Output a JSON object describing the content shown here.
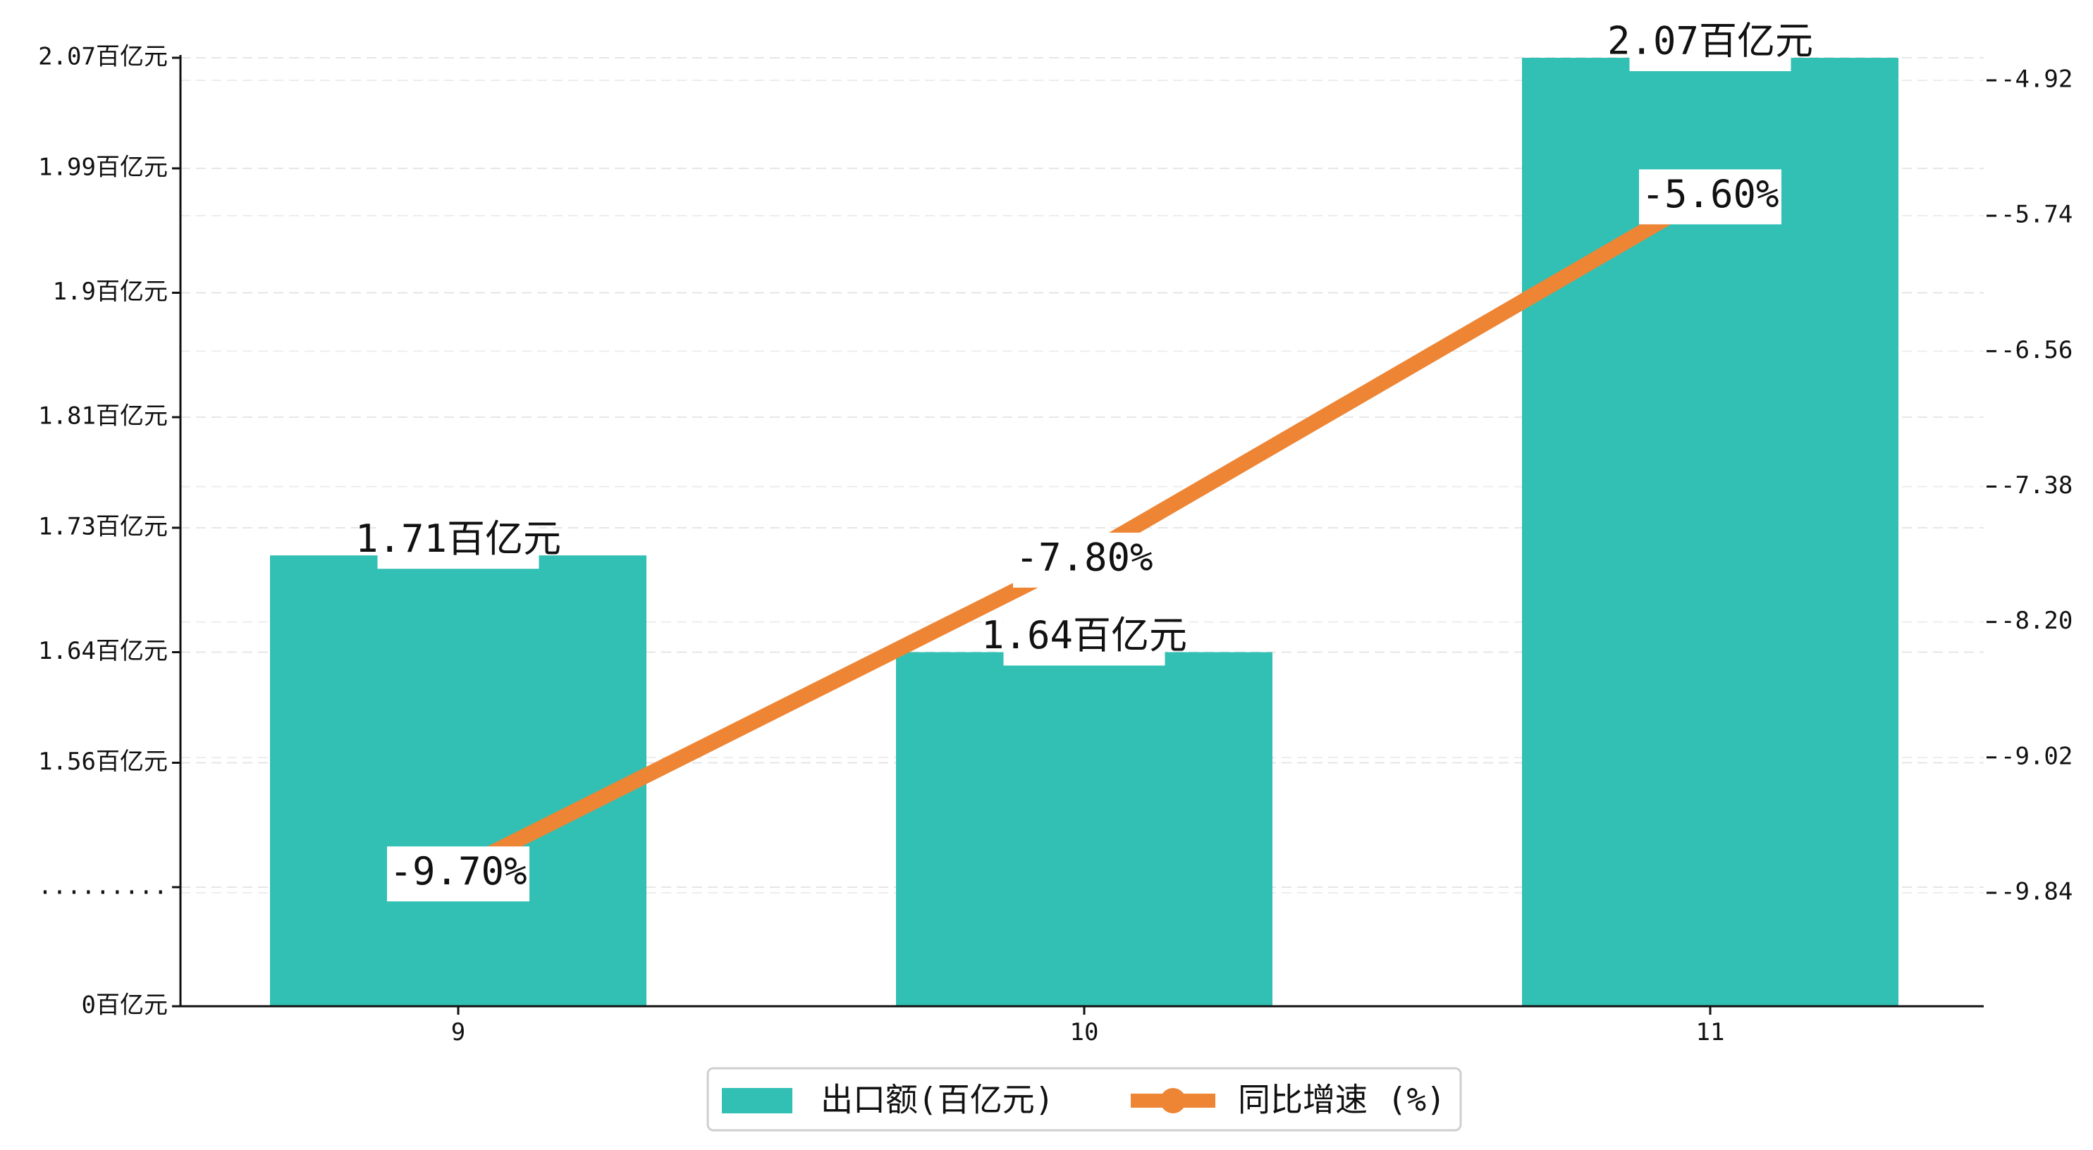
{
  "chart_data": {
    "type": "bar+line",
    "categories": [
      "9",
      "10",
      "11"
    ],
    "bar_series": {
      "name": "出口额(百亿元)",
      "values": [
        1.71,
        1.64,
        2.07
      ],
      "labels": [
        "1.71百亿元",
        "1.64百亿元",
        "2.07百亿元"
      ],
      "color": "#31c0b3"
    },
    "line_series": {
      "name": "同比增速 (%)",
      "values": [
        -9.7,
        -7.8,
        -5.6
      ],
      "labels": [
        "-9.70%",
        "-7.80%",
        "-5.60%"
      ],
      "color": "#ed8535"
    },
    "left_axis": {
      "ticks": [
        {
          "value": 0,
          "label": "0百亿元"
        },
        {
          "value": 1.47,
          "label": "........."
        },
        {
          "value": 1.56,
          "label": "1.56百亿元"
        },
        {
          "value": 1.64,
          "label": "1.64百亿元"
        },
        {
          "value": 1.73,
          "label": "1.73百亿元"
        },
        {
          "value": 1.81,
          "label": "1.81百亿元"
        },
        {
          "value": 1.9,
          "label": "1.9百亿元"
        },
        {
          "value": 1.99,
          "label": "1.99百亿元"
        },
        {
          "value": 2.07,
          "label": "2.07百亿元"
        }
      ],
      "note": "broken axis: 0 at bottom, 1.47–2.07 linear above"
    },
    "right_axis": {
      "ticks": [
        {
          "value": -9.84,
          "label": "-9.84"
        },
        {
          "value": -9.02,
          "label": "-9.02"
        },
        {
          "value": -8.2,
          "label": "-8.20"
        },
        {
          "value": -7.38,
          "label": "-7.38"
        },
        {
          "value": -6.56,
          "label": "-6.56"
        },
        {
          "value": -5.74,
          "label": "-5.74"
        },
        {
          "value": -4.92,
          "label": "-4.92"
        }
      ]
    },
    "grid": true,
    "legend_position": "bottom-center"
  }
}
